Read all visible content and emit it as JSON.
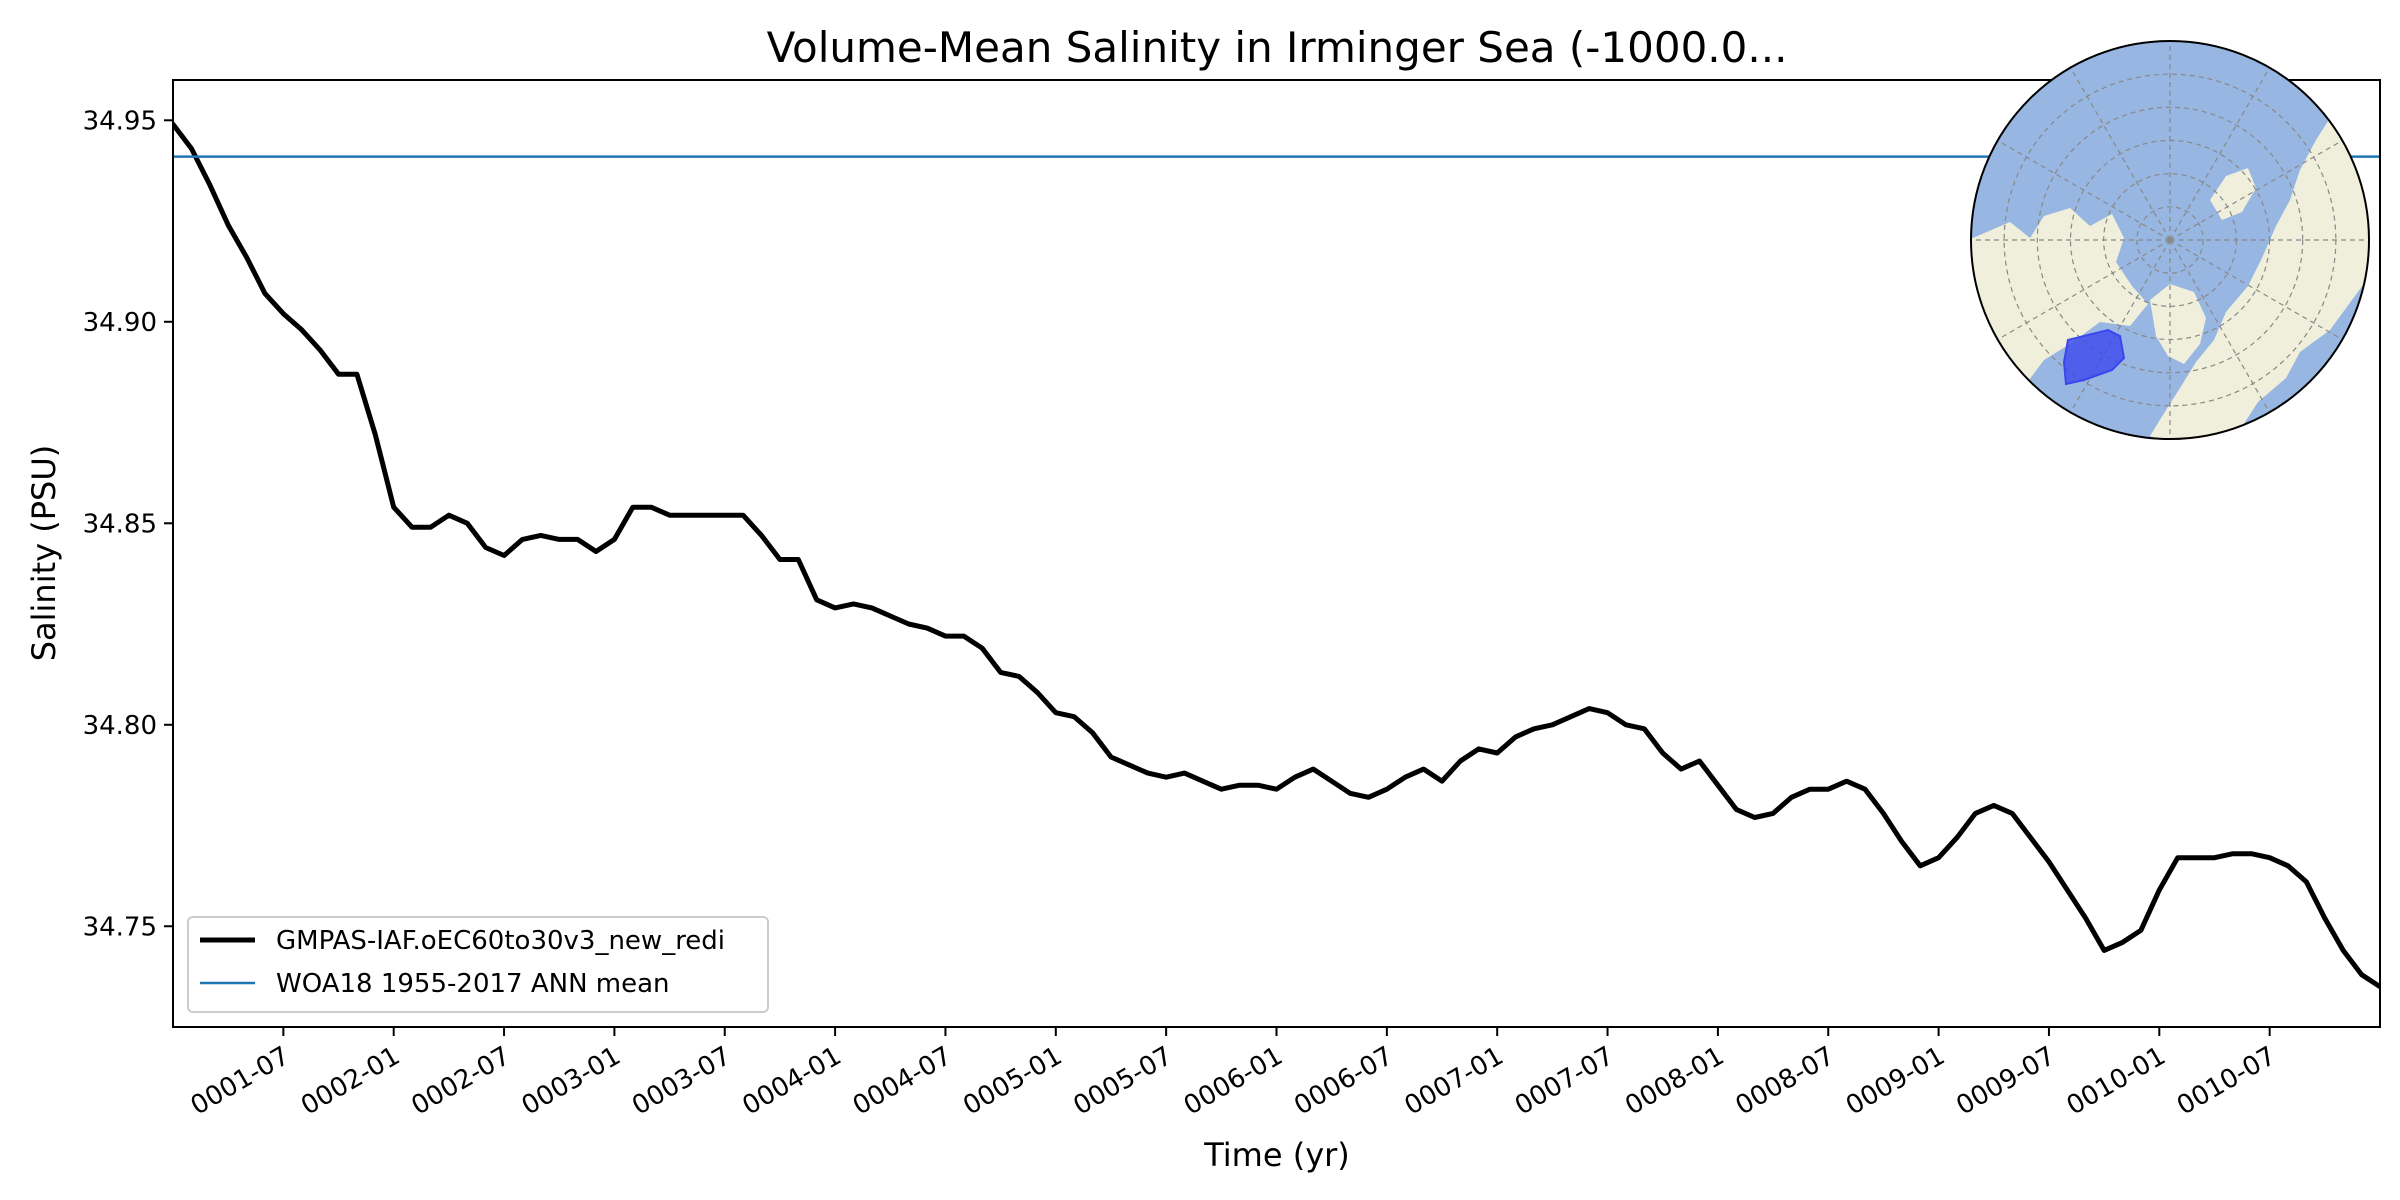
{
  "chart_data": {
    "type": "line",
    "title": "Volume-Mean Salinity in Irminger Sea (-1000.0...",
    "xlabel": "Time (yr)",
    "ylabel": "Salinity (PSU)",
    "xlim": [
      0,
      120
    ],
    "ylim": [
      34.725,
      34.96
    ],
    "y_ticks": [
      34.75,
      34.8,
      34.85,
      34.9,
      34.95
    ],
    "y_tick_labels": [
      "34.75",
      "34.80",
      "34.85",
      "34.90",
      "34.95"
    ],
    "x_ticks": [
      6,
      12,
      18,
      24,
      30,
      36,
      42,
      48,
      54,
      60,
      66,
      72,
      78,
      84,
      90,
      96,
      102,
      108,
      114
    ],
    "x_tick_labels": [
      "0001-07",
      "0002-01",
      "0002-07",
      "0003-01",
      "0003-07",
      "0004-01",
      "0004-07",
      "0005-01",
      "0005-07",
      "0006-01",
      "0006-07",
      "0007-01",
      "0007-07",
      "0008-01",
      "0008-07",
      "0009-01",
      "0009-07",
      "0010-01",
      "0010-07"
    ],
    "legend_position": "lower-left",
    "series": [
      {
        "name": "GMPAS-IAF.oEC60to30v3_new_redi",
        "color": "#000000",
        "x": [
          0,
          1,
          2,
          3,
          4,
          5,
          6,
          7,
          8,
          9,
          10,
          11,
          12,
          13,
          14,
          15,
          16,
          17,
          18,
          19,
          20,
          21,
          22,
          23,
          24,
          25,
          26,
          27,
          28,
          29,
          30,
          31,
          32,
          33,
          34,
          35,
          36,
          37,
          38,
          39,
          40,
          41,
          42,
          43,
          44,
          45,
          46,
          47,
          48,
          49,
          50,
          51,
          52,
          53,
          54,
          55,
          56,
          57,
          58,
          59,
          60,
          61,
          62,
          63,
          64,
          65,
          66,
          67,
          68,
          69,
          70,
          71,
          72,
          73,
          74,
          75,
          76,
          77,
          78,
          79,
          80,
          81,
          82,
          83,
          84,
          85,
          86,
          87,
          88,
          89,
          90,
          91,
          92,
          93,
          94,
          95,
          96,
          97,
          98,
          99,
          100,
          101,
          102,
          103,
          104,
          105,
          106,
          107,
          108,
          109,
          110,
          111,
          112,
          113,
          114,
          115,
          116,
          117,
          118,
          119,
          120
        ],
        "values": [
          34.949,
          34.943,
          34.934,
          34.924,
          34.916,
          34.907,
          34.902,
          34.898,
          34.893,
          34.887,
          34.887,
          34.872,
          34.854,
          34.849,
          34.849,
          34.852,
          34.85,
          34.844,
          34.842,
          34.846,
          34.847,
          34.846,
          34.846,
          34.843,
          34.846,
          34.854,
          34.854,
          34.852,
          34.852,
          34.852,
          34.852,
          34.852,
          34.847,
          34.841,
          34.841,
          34.831,
          34.829,
          34.83,
          34.829,
          34.827,
          34.825,
          34.824,
          34.822,
          34.822,
          34.819,
          34.813,
          34.812,
          34.808,
          34.803,
          34.802,
          34.798,
          34.792,
          34.79,
          34.788,
          34.787,
          34.788,
          34.786,
          34.784,
          34.785,
          34.785,
          34.784,
          34.787,
          34.789,
          34.786,
          34.783,
          34.782,
          34.784,
          34.787,
          34.789,
          34.786,
          34.791,
          34.794,
          34.793,
          34.797,
          34.799,
          34.8,
          34.802,
          34.804,
          34.803,
          34.8,
          34.799,
          34.793,
          34.789,
          34.791,
          34.785,
          34.779,
          34.777,
          34.778,
          34.782,
          34.784,
          34.784,
          34.786,
          34.784,
          34.778,
          34.771,
          34.765,
          34.767,
          34.772,
          34.778,
          34.78,
          34.778,
          34.772,
          34.766,
          34.759,
          34.752,
          34.744,
          34.746,
          34.749,
          34.759,
          34.767,
          34.767,
          34.767,
          34.768,
          34.768,
          34.767,
          34.765,
          34.761,
          34.752,
          34.744,
          34.738,
          34.735
        ]
      },
      {
        "name": "WOA18 1955-2017 ANN mean",
        "color": "#1f77b4",
        "x": [
          0,
          120
        ],
        "values": [
          34.941,
          34.941
        ]
      }
    ]
  },
  "colors": {
    "ocean": "#97b6e2",
    "land": "#efefdb",
    "region": "#3a46ee"
  }
}
